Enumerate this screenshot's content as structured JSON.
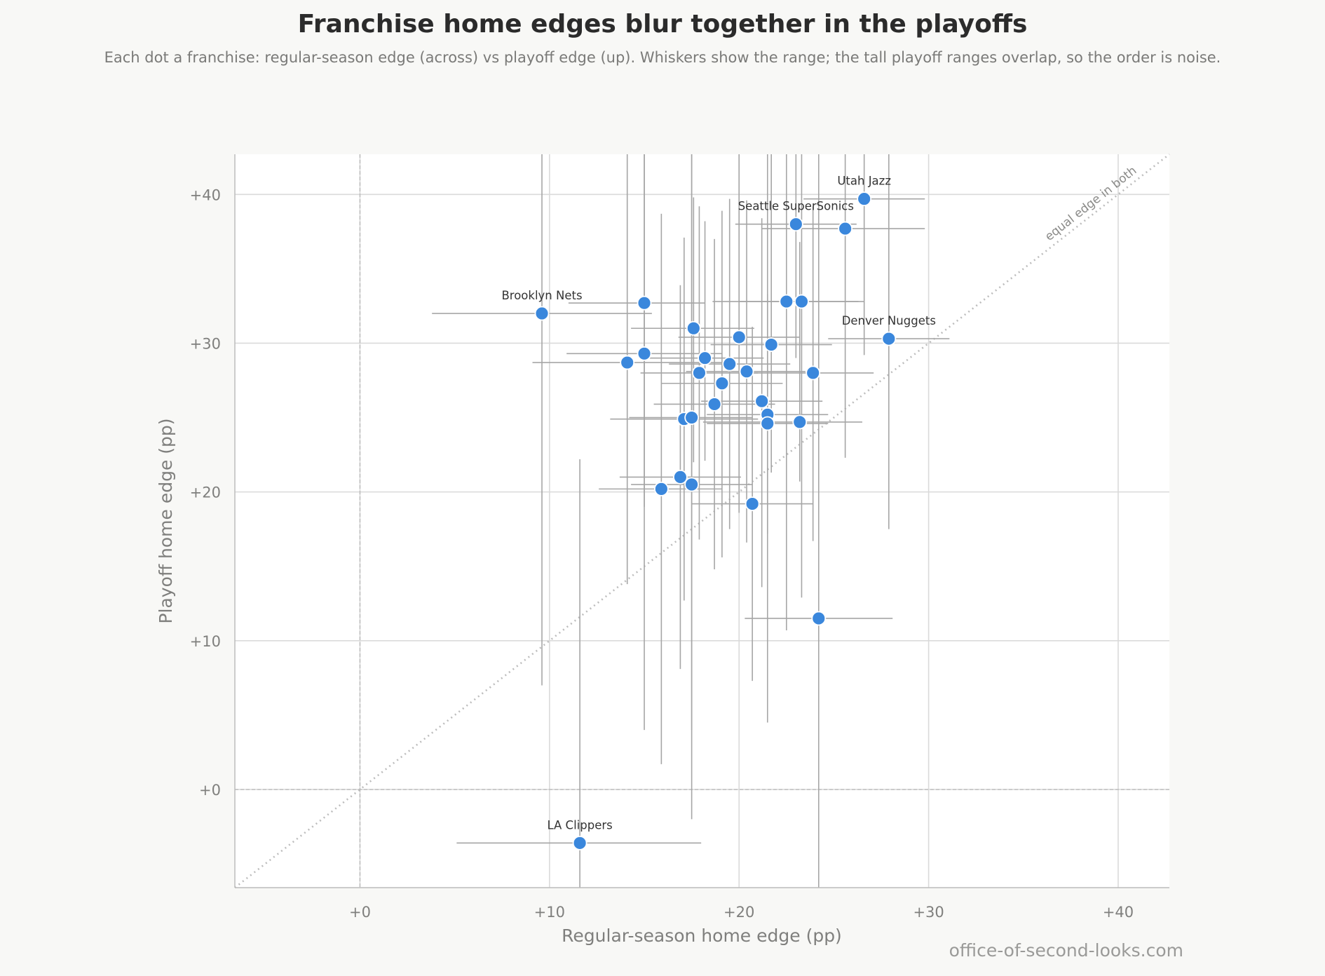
{
  "chart_data": {
    "type": "scatter",
    "title": "Franchise home edges blur together in the playoffs",
    "subtitle": "Each dot a franchise: regular-season edge (across) vs playoff edge (up).  Whiskers show the range; the tall playoff ranges overlap, so the order is noise.",
    "xlabel": "Regular-season home edge (pp)",
    "ylabel": "Playoff home edge (pp)",
    "xlim": [
      -6.6,
      42.7
    ],
    "ylim": [
      -6.6,
      42.7
    ],
    "x_ticks": [
      0,
      10,
      20,
      30,
      40
    ],
    "y_ticks": [
      0,
      10,
      20,
      30,
      40
    ],
    "x_tick_labels": [
      "+0",
      "+10",
      "+20",
      "+30",
      "+40"
    ],
    "y_tick_labels": [
      "+0",
      "+10",
      "+20",
      "+30",
      "+40"
    ],
    "grid": true,
    "reference_line_label": "equal edge in both",
    "point_color": "#3a87dc",
    "whisker_color": "#a6a6a6",
    "points": [
      {
        "label": "Utah Jazz",
        "x": 26.6,
        "y": 39.7,
        "x_lo": 23.4,
        "x_hi": 29.8,
        "y_lo": 29.2,
        "y_hi": 42.7
      },
      {
        "label": "Seattle SuperSonics",
        "x": 23.0,
        "y": 38.0,
        "x_lo": 19.8,
        "x_hi": 26.2,
        "y_lo": 29.0,
        "y_hi": 42.7
      },
      {
        "label": "",
        "x": 25.6,
        "y": 37.7,
        "x_lo": 21.2,
        "x_hi": 29.8,
        "y_lo": 22.3,
        "y_hi": 42.7
      },
      {
        "label": "Brooklyn Nets",
        "x": 9.6,
        "y": 32.0,
        "x_lo": 3.8,
        "x_hi": 15.4,
        "y_lo": 7.0,
        "y_hi": 42.7
      },
      {
        "label": "",
        "x": 15.0,
        "y": 32.7,
        "x_lo": 11.0,
        "x_hi": 18.2,
        "y_lo": 4.0,
        "y_hi": 42.7
      },
      {
        "label": "",
        "x": 22.5,
        "y": 32.8,
        "x_lo": 18.6,
        "x_hi": 26.3,
        "y_lo": 10.7,
        "y_hi": 42.7
      },
      {
        "label": "",
        "x": 23.3,
        "y": 32.8,
        "x_lo": 20.0,
        "x_hi": 26.6,
        "y_lo": 12.9,
        "y_hi": 42.7
      },
      {
        "label": "Denver Nuggets",
        "x": 27.9,
        "y": 30.3,
        "x_lo": 24.7,
        "x_hi": 31.1,
        "y_lo": 17.5,
        "y_hi": 42.7
      },
      {
        "label": "",
        "x": 17.6,
        "y": 31.0,
        "x_lo": 14.3,
        "x_hi": 20.8,
        "y_lo": 22.0,
        "y_hi": 39.8
      },
      {
        "label": "",
        "x": 20.0,
        "y": 30.4,
        "x_lo": 16.8,
        "x_hi": 23.2,
        "y_lo": 18.6,
        "y_hi": 42.7
      },
      {
        "label": "",
        "x": 21.7,
        "y": 29.9,
        "x_lo": 18.5,
        "x_hi": 24.9,
        "y_lo": 21.3,
        "y_hi": 42.7
      },
      {
        "label": "",
        "x": 15.0,
        "y": 29.3,
        "x_lo": 10.9,
        "x_hi": 19.1,
        "y_lo": 19.0,
        "y_hi": 42.7
      },
      {
        "label": "",
        "x": 18.2,
        "y": 29.0,
        "x_lo": 15.2,
        "x_hi": 21.3,
        "y_lo": 22.1,
        "y_hi": 38.2
      },
      {
        "label": "",
        "x": 14.1,
        "y": 28.7,
        "x_lo": 9.1,
        "x_hi": 19.1,
        "y_lo": 13.8,
        "y_hi": 42.7
      },
      {
        "label": "",
        "x": 19.5,
        "y": 28.6,
        "x_lo": 16.3,
        "x_hi": 22.7,
        "y_lo": 17.5,
        "y_hi": 39.7
      },
      {
        "label": "",
        "x": 17.9,
        "y": 28.0,
        "x_lo": 14.8,
        "x_hi": 21.0,
        "y_lo": 16.8,
        "y_hi": 39.2
      },
      {
        "label": "",
        "x": 20.4,
        "y": 28.1,
        "x_lo": 17.2,
        "x_hi": 23.5,
        "y_lo": 16.6,
        "y_hi": 39.6
      },
      {
        "label": "",
        "x": 23.9,
        "y": 28.0,
        "x_lo": 20.6,
        "x_hi": 27.1,
        "y_lo": 16.7,
        "y_hi": 39.2
      },
      {
        "label": "",
        "x": 19.1,
        "y": 27.3,
        "x_lo": 15.9,
        "x_hi": 22.3,
        "y_lo": 15.6,
        "y_hi": 38.9
      },
      {
        "label": "",
        "x": 21.2,
        "y": 26.1,
        "x_lo": 18.0,
        "x_hi": 24.4,
        "y_lo": 13.6,
        "y_hi": 38.4
      },
      {
        "label": "",
        "x": 18.7,
        "y": 25.9,
        "x_lo": 15.5,
        "x_hi": 21.9,
        "y_lo": 14.8,
        "y_hi": 37.0
      },
      {
        "label": "",
        "x": 21.5,
        "y": 25.2,
        "x_lo": 18.3,
        "x_hi": 24.7,
        "y_lo": 17.2,
        "y_hi": 33.3
      },
      {
        "label": "",
        "x": 17.1,
        "y": 24.9,
        "x_lo": 13.2,
        "x_hi": 21.0,
        "y_lo": 12.7,
        "y_hi": 37.1
      },
      {
        "label": "",
        "x": 17.5,
        "y": 25.0,
        "x_lo": 14.2,
        "x_hi": 20.7,
        "y_lo": 4.0,
        "y_hi": 42.7
      },
      {
        "label": "",
        "x": 23.2,
        "y": 24.7,
        "x_lo": 18.1,
        "x_hi": 26.5,
        "y_lo": 20.7,
        "y_hi": 36.8
      },
      {
        "label": "",
        "x": 21.5,
        "y": 24.6,
        "x_lo": 18.3,
        "x_hi": 24.7,
        "y_lo": 4.5,
        "y_hi": 42.7
      },
      {
        "label": "",
        "x": 16.9,
        "y": 21.0,
        "x_lo": 13.7,
        "x_hi": 20.1,
        "y_lo": 8.1,
        "y_hi": 33.9
      },
      {
        "label": "",
        "x": 17.5,
        "y": 20.5,
        "x_lo": 14.3,
        "x_hi": 20.7,
        "y_lo": -2.0,
        "y_hi": 42.7
      },
      {
        "label": "",
        "x": 15.9,
        "y": 20.2,
        "x_lo": 12.6,
        "x_hi": 19.1,
        "y_lo": 1.7,
        "y_hi": 38.7
      },
      {
        "label": "",
        "x": 20.7,
        "y": 19.2,
        "x_lo": 17.5,
        "x_hi": 23.9,
        "y_lo": 7.3,
        "y_hi": 31.1
      },
      {
        "label": "",
        "x": 24.2,
        "y": 11.5,
        "x_lo": 20.3,
        "x_hi": 28.1,
        "y_lo": -6.6,
        "y_hi": 42.7
      },
      {
        "label": "LA Clippers",
        "x": 11.6,
        "y": -3.6,
        "x_lo": 5.1,
        "x_hi": 18.0,
        "y_lo": -6.6,
        "y_hi": 22.2
      }
    ]
  },
  "credit": "office-of-second-looks.com"
}
